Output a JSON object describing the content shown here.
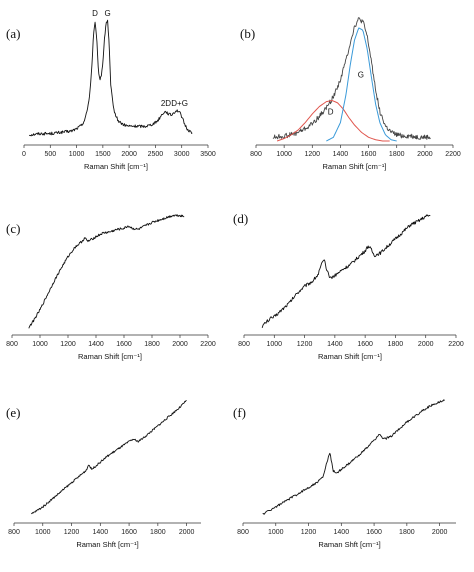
{
  "chart_data": [
    {
      "panel": "(a)",
      "type": "line",
      "xlabel": "Raman Shift [cm⁻¹]",
      "xlim": [
        0,
        3500
      ],
      "xticks": [
        0,
        500,
        1000,
        1500,
        2000,
        2500,
        3000,
        3500
      ],
      "ylim": [
        0,
        1
      ],
      "show_yaxis": false,
      "annotations": [
        {
          "text": "D",
          "x": 1350,
          "y": 1.0
        },
        {
          "text": "G",
          "x": 1590,
          "y": 1.0
        },
        {
          "text": "2D",
          "x": 2700,
          "y": 0.27
        },
        {
          "text": "D+G",
          "x": 2960,
          "y": 0.27
        }
      ],
      "series": [
        {
          "color": "#111111",
          "x": [
            100,
            300,
            500,
            700,
            900,
            1000,
            1100,
            1150,
            1200,
            1250,
            1290,
            1320,
            1350,
            1380,
            1410,
            1440,
            1470,
            1500,
            1530,
            1560,
            1590,
            1620,
            1650,
            1700,
            1750,
            1800,
            1900,
            2000,
            2100,
            2200,
            2300,
            2400,
            2500,
            2550,
            2600,
            2650,
            2700,
            2750,
            2800,
            2850,
            2900,
            2950,
            3000,
            3050,
            3100,
            3150,
            3200
          ],
          "y": [
            0.05,
            0.06,
            0.06,
            0.07,
            0.08,
            0.1,
            0.13,
            0.17,
            0.24,
            0.38,
            0.6,
            0.85,
            0.96,
            0.86,
            0.6,
            0.5,
            0.53,
            0.64,
            0.82,
            0.96,
            0.98,
            0.78,
            0.45,
            0.27,
            0.2,
            0.16,
            0.13,
            0.12,
            0.12,
            0.12,
            0.12,
            0.13,
            0.15,
            0.17,
            0.2,
            0.23,
            0.24,
            0.22,
            0.21,
            0.23,
            0.25,
            0.24,
            0.2,
            0.14,
            0.1,
            0.08,
            0.07
          ],
          "noise": 0.012
        }
      ]
    },
    {
      "panel": "(b)",
      "type": "line",
      "xlabel": "Raman Shift [cm⁻¹]",
      "xlim": [
        800,
        2200
      ],
      "xticks": [
        800,
        1000,
        1200,
        1400,
        1600,
        1800,
        2000,
        2200
      ],
      "ylim": [
        0,
        1
      ],
      "show_yaxis": false,
      "annotations": [
        {
          "text": "D",
          "x": 1330,
          "y": 0.2
        },
        {
          "text": "G",
          "x": 1545,
          "y": 0.5
        }
      ],
      "series": [
        {
          "color": "#444444",
          "x": [
            920,
            1000,
            1080,
            1150,
            1200,
            1250,
            1300,
            1350,
            1400,
            1440,
            1470,
            1500,
            1530,
            1560,
            1590,
            1620,
            1650,
            1680,
            1720,
            1760,
            1800,
            1850,
            1900,
            1950,
            2000,
            2040
          ],
          "y": [
            0.03,
            0.04,
            0.06,
            0.1,
            0.14,
            0.2,
            0.27,
            0.36,
            0.5,
            0.66,
            0.8,
            0.93,
            0.99,
            0.97,
            0.85,
            0.65,
            0.42,
            0.24,
            0.12,
            0.07,
            0.05,
            0.04,
            0.04,
            0.03,
            0.03,
            0.03
          ],
          "noise": 0.02
        },
        {
          "name": "D",
          "color": "#e0564e",
          "x": [
            950,
            1000,
            1050,
            1100,
            1150,
            1200,
            1250,
            1300,
            1340,
            1380,
            1420,
            1460,
            1500,
            1550,
            1600,
            1650,
            1700,
            1750
          ],
          "y": [
            0.0,
            0.02,
            0.05,
            0.09,
            0.15,
            0.22,
            0.28,
            0.32,
            0.33,
            0.31,
            0.26,
            0.19,
            0.13,
            0.07,
            0.03,
            0.01,
            0.0,
            0.0
          ]
        },
        {
          "name": "G",
          "color": "#3a9ad9",
          "x": [
            1300,
            1350,
            1400,
            1440,
            1470,
            1500,
            1530,
            1560,
            1590,
            1620,
            1650,
            1680,
            1720,
            1760,
            1800
          ],
          "y": [
            0.0,
            0.03,
            0.15,
            0.38,
            0.62,
            0.82,
            0.92,
            0.9,
            0.75,
            0.52,
            0.3,
            0.15,
            0.05,
            0.01,
            0.0
          ]
        }
      ]
    },
    {
      "panel": "(c)",
      "type": "line",
      "xlabel": "Raman Shift [cm⁻¹]",
      "xlim": [
        800,
        2200
      ],
      "xticks": [
        800,
        1000,
        1200,
        1400,
        1600,
        1800,
        2000,
        2200
      ],
      "ylim": [
        0,
        1
      ],
      "show_yaxis": false,
      "annotations": [],
      "series": [
        {
          "color": "#111111",
          "x": [
            920,
            950,
            1000,
            1050,
            1100,
            1150,
            1200,
            1250,
            1300,
            1320,
            1340,
            1360,
            1400,
            1450,
            1500,
            1550,
            1600,
            1630,
            1660,
            1700,
            1750,
            1800,
            1850,
            1900,
            1950,
            2000,
            2030
          ],
          "y": [
            0.03,
            0.08,
            0.18,
            0.3,
            0.42,
            0.53,
            0.63,
            0.71,
            0.76,
            0.79,
            0.76,
            0.77,
            0.8,
            0.83,
            0.84,
            0.86,
            0.87,
            0.89,
            0.87,
            0.86,
            0.89,
            0.92,
            0.94,
            0.96,
            0.98,
            0.98,
            0.97
          ],
          "noise": 0.01
        }
      ]
    },
    {
      "panel": "(d)",
      "type": "line",
      "xlabel": "Raman Shift [cm⁻¹]",
      "xlim": [
        800,
        2200
      ],
      "xticks": [
        800,
        1000,
        1200,
        1400,
        1600,
        1800,
        2000,
        2200
      ],
      "ylim": [
        0,
        1
      ],
      "show_yaxis": false,
      "annotations": [],
      "series": [
        {
          "color": "#111111",
          "x": [
            920,
            950,
            980,
            1000,
            1050,
            1100,
            1150,
            1200,
            1250,
            1290,
            1310,
            1330,
            1350,
            1370,
            1400,
            1450,
            1500,
            1550,
            1600,
            1620,
            1640,
            1660,
            1700,
            1750,
            1800,
            1850,
            1900,
            1950,
            2000,
            2030
          ],
          "y": [
            0.04,
            0.08,
            0.11,
            0.12,
            0.18,
            0.24,
            0.32,
            0.38,
            0.42,
            0.48,
            0.56,
            0.6,
            0.5,
            0.45,
            0.47,
            0.52,
            0.56,
            0.62,
            0.68,
            0.72,
            0.69,
            0.64,
            0.66,
            0.72,
            0.78,
            0.84,
            0.9,
            0.93,
            0.97,
            0.98
          ],
          "noise": 0.014
        }
      ]
    },
    {
      "panel": "(e)",
      "type": "line",
      "xlabel": "Raman Shft [cm⁻¹]",
      "xlim": [
        800,
        2100
      ],
      "xticks": [
        800,
        1000,
        1200,
        1400,
        1600,
        1800,
        2000
      ],
      "ylim": [
        0,
        1
      ],
      "show_yaxis": false,
      "annotations": [],
      "series": [
        {
          "color": "#111111",
          "x": [
            920,
            960,
            1000,
            1050,
            1100,
            1150,
            1200,
            1250,
            1300,
            1320,
            1340,
            1360,
            1400,
            1450,
            1500,
            1550,
            1600,
            1630,
            1660,
            1700,
            1750,
            1800,
            1850,
            1900,
            1950,
            2000
          ],
          "y": [
            0.04,
            0.07,
            0.1,
            0.15,
            0.2,
            0.25,
            0.3,
            0.35,
            0.4,
            0.45,
            0.41,
            0.43,
            0.47,
            0.52,
            0.56,
            0.6,
            0.64,
            0.66,
            0.64,
            0.67,
            0.72,
            0.77,
            0.82,
            0.87,
            0.92,
            0.98
          ],
          "noise": 0.008
        }
      ]
    },
    {
      "panel": "(f)",
      "type": "line",
      "xlabel": "Raman Shft [cm⁻¹]",
      "xlim": [
        800,
        2100
      ],
      "xticks": [
        800,
        1000,
        1200,
        1400,
        1600,
        1800,
        2000
      ],
      "ylim": [
        0,
        1
      ],
      "show_yaxis": false,
      "annotations": [],
      "series": [
        {
          "color": "#111111",
          "x": [
            920,
            960,
            1000,
            1050,
            1100,
            1150,
            1200,
            1250,
            1290,
            1310,
            1330,
            1350,
            1370,
            1400,
            1450,
            1500,
            1550,
            1600,
            1630,
            1660,
            1700,
            1750,
            1800,
            1850,
            1900,
            1950,
            2000,
            2030
          ],
          "y": [
            0.04,
            0.07,
            0.1,
            0.14,
            0.18,
            0.22,
            0.26,
            0.3,
            0.35,
            0.46,
            0.55,
            0.4,
            0.38,
            0.41,
            0.46,
            0.52,
            0.58,
            0.65,
            0.7,
            0.66,
            0.68,
            0.74,
            0.8,
            0.85,
            0.9,
            0.94,
            0.97,
            0.98
          ],
          "noise": 0.009
        }
      ]
    }
  ]
}
